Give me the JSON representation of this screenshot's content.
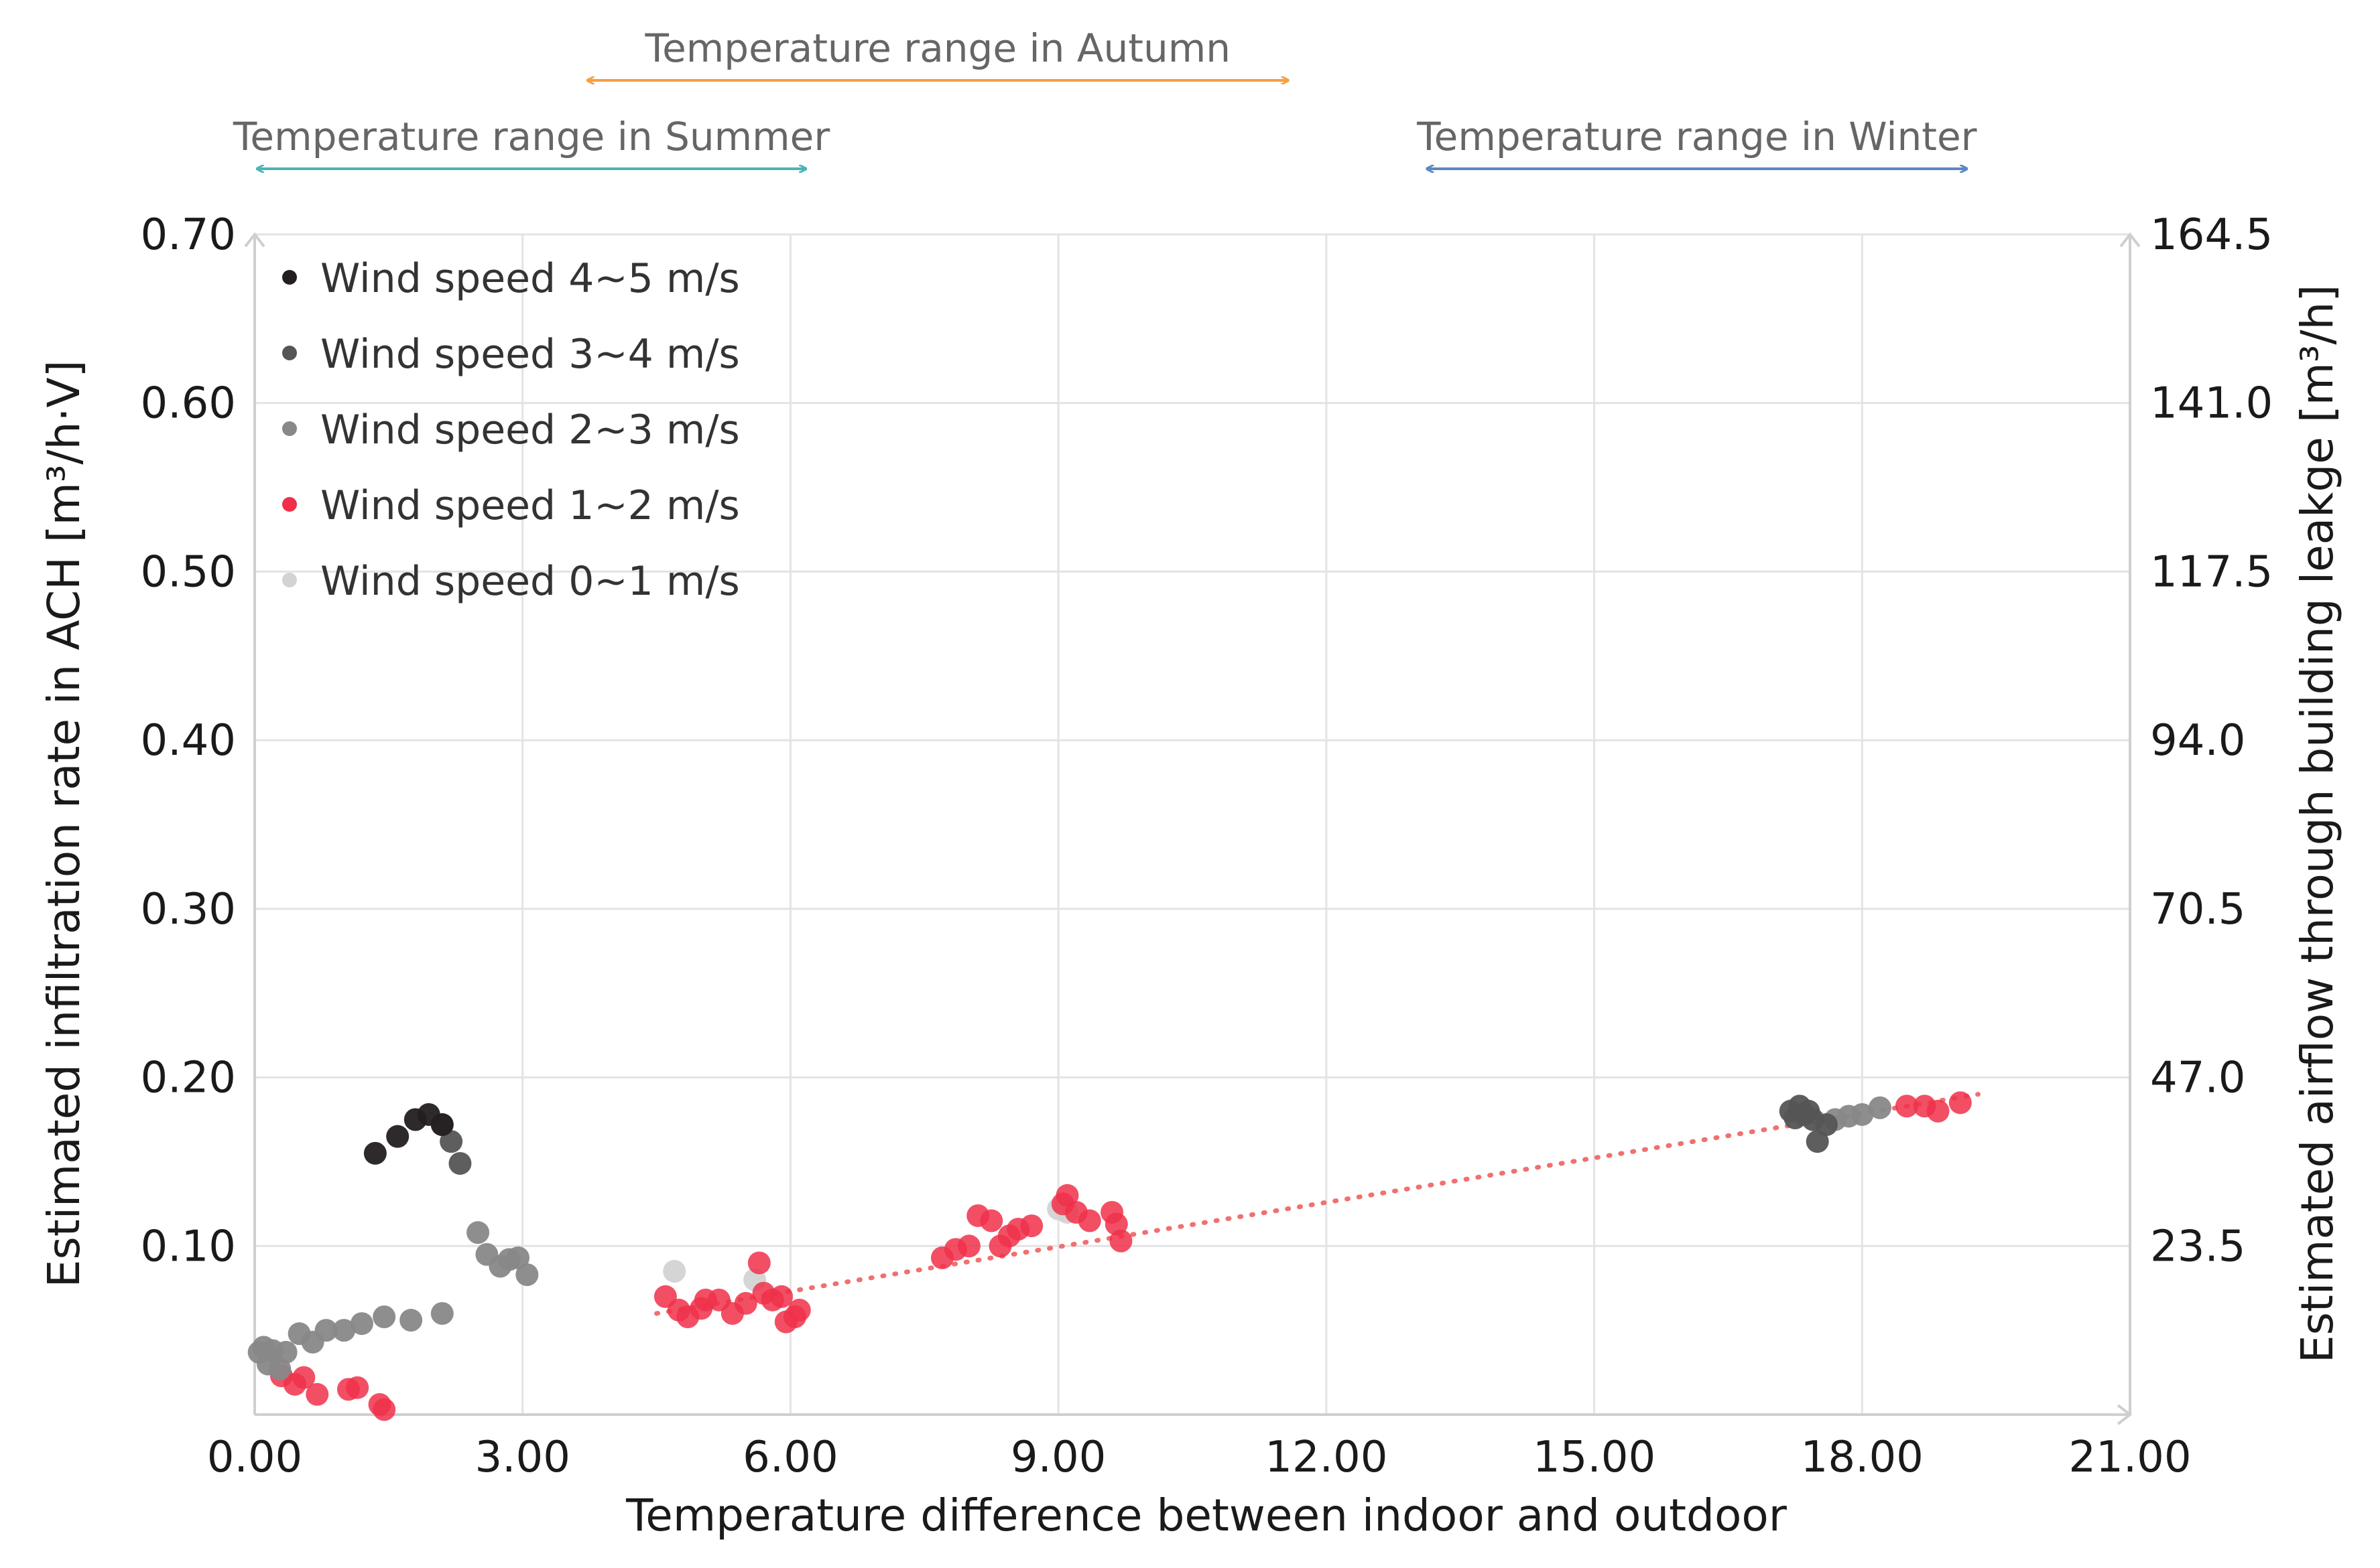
{
  "chart_data": {
    "type": "scatter",
    "title": "",
    "xlabel": "Temperature difference between indoor and outdoor",
    "ylabel": "Estimated infiltration rate in ACH [m³/h·V]",
    "y2label": "Estimated airflow through building leakge [m³/h]",
    "xlim": [
      0,
      21
    ],
    "ylim": [
      0,
      0.7
    ],
    "y2lim": [
      0,
      164.5
    ],
    "x_ticks": [
      "0.00",
      "3.00",
      "6.00",
      "9.00",
      "12.00",
      "15.00",
      "18.00",
      "21.00"
    ],
    "y_ticks": [
      "0.10",
      "0.20",
      "0.30",
      "0.40",
      "0.50",
      "0.60",
      "0.70"
    ],
    "y2_ticks": [
      "23.5",
      "47.0",
      "70.5",
      "94.0",
      "117.5",
      "141.0",
      "164.5"
    ],
    "grid": true,
    "legend_position": "top-left",
    "season_ranges": [
      {
        "label": "Temperature range in Autumn",
        "x": [
          3.7,
          11.6
        ],
        "color": "#f5a040"
      },
      {
        "label": "Temperature range in Summer",
        "x": [
          0.0,
          6.2
        ],
        "color": "#4ab5b5"
      },
      {
        "label": "Temperature range in Winter",
        "x": [
          13.1,
          19.2
        ],
        "color": "#5b87c5"
      }
    ],
    "trendline": {
      "name": "",
      "x": [
        4.5,
        19.3
      ],
      "y": [
        0.06,
        0.19
      ],
      "color": "#f07070"
    },
    "series": [
      {
        "name": "Wind speed 4~5 m/s",
        "color": "#231f20",
        "points": [
          [
            1.35,
            0.155
          ],
          [
            1.6,
            0.165
          ],
          [
            1.8,
            0.175
          ],
          [
            1.95,
            0.178
          ],
          [
            2.1,
            0.172
          ]
        ]
      },
      {
        "name": "Wind speed 3~4 m/s",
        "color": "#555555",
        "points": [
          [
            2.1,
            0.172
          ],
          [
            2.2,
            0.162
          ],
          [
            2.3,
            0.149
          ],
          [
            17.2,
            0.18
          ],
          [
            17.25,
            0.176
          ],
          [
            17.3,
            0.183
          ],
          [
            17.35,
            0.178
          ],
          [
            17.4,
            0.18
          ],
          [
            17.45,
            0.175
          ],
          [
            17.5,
            0.162
          ],
          [
            17.6,
            0.172
          ]
        ]
      },
      {
        "name": "Wind speed 2~3 m/s",
        "color": "#888888",
        "points": [
          [
            0.05,
            0.037
          ],
          [
            0.1,
            0.04
          ],
          [
            0.15,
            0.03
          ],
          [
            0.2,
            0.038
          ],
          [
            0.28,
            0.027
          ],
          [
            0.35,
            0.037
          ],
          [
            0.5,
            0.048
          ],
          [
            0.65,
            0.043
          ],
          [
            0.8,
            0.05
          ],
          [
            1.0,
            0.05
          ],
          [
            1.2,
            0.054
          ],
          [
            1.45,
            0.058
          ],
          [
            1.75,
            0.056
          ],
          [
            2.1,
            0.06
          ],
          [
            2.5,
            0.108
          ],
          [
            2.6,
            0.095
          ],
          [
            2.75,
            0.088
          ],
          [
            2.85,
            0.092
          ],
          [
            2.95,
            0.093
          ],
          [
            3.05,
            0.083
          ],
          [
            17.7,
            0.175
          ],
          [
            17.85,
            0.177
          ],
          [
            18.0,
            0.178
          ],
          [
            18.2,
            0.182
          ]
        ]
      },
      {
        "name": "Wind speed 1~2 m/s",
        "color": "#f0304a",
        "points": [
          [
            0.3,
            0.023
          ],
          [
            0.45,
            0.018
          ],
          [
            0.55,
            0.022
          ],
          [
            0.7,
            0.012
          ],
          [
            1.05,
            0.015
          ],
          [
            1.15,
            0.016
          ],
          [
            1.4,
            0.006
          ],
          [
            1.45,
            0.003
          ],
          [
            4.6,
            0.07
          ],
          [
            4.75,
            0.062
          ],
          [
            4.85,
            0.058
          ],
          [
            5.0,
            0.063
          ],
          [
            5.05,
            0.068
          ],
          [
            5.2,
            0.068
          ],
          [
            5.35,
            0.06
          ],
          [
            5.5,
            0.066
          ],
          [
            5.65,
            0.09
          ],
          [
            5.7,
            0.072
          ],
          [
            5.8,
            0.068
          ],
          [
            5.9,
            0.07
          ],
          [
            5.95,
            0.055
          ],
          [
            6.05,
            0.058
          ],
          [
            6.1,
            0.062
          ],
          [
            7.7,
            0.093
          ],
          [
            7.85,
            0.098
          ],
          [
            8.0,
            0.1
          ],
          [
            8.1,
            0.118
          ],
          [
            8.25,
            0.115
          ],
          [
            8.35,
            0.1
          ],
          [
            8.45,
            0.106
          ],
          [
            8.55,
            0.11
          ],
          [
            8.7,
            0.112
          ],
          [
            9.05,
            0.125
          ],
          [
            9.1,
            0.13
          ],
          [
            9.2,
            0.12
          ],
          [
            9.35,
            0.115
          ],
          [
            9.6,
            0.12
          ],
          [
            9.65,
            0.113
          ],
          [
            9.7,
            0.103
          ],
          [
            18.5,
            0.183
          ],
          [
            18.7,
            0.183
          ],
          [
            18.85,
            0.18
          ],
          [
            19.1,
            0.185
          ]
        ]
      },
      {
        "name": "Wind speed 0~1 m/s",
        "color": "#d3d3d3",
        "points": [
          [
            4.7,
            0.085
          ],
          [
            5.6,
            0.08
          ],
          [
            9.0,
            0.122
          ],
          [
            9.1,
            0.12
          ]
        ]
      }
    ]
  }
}
